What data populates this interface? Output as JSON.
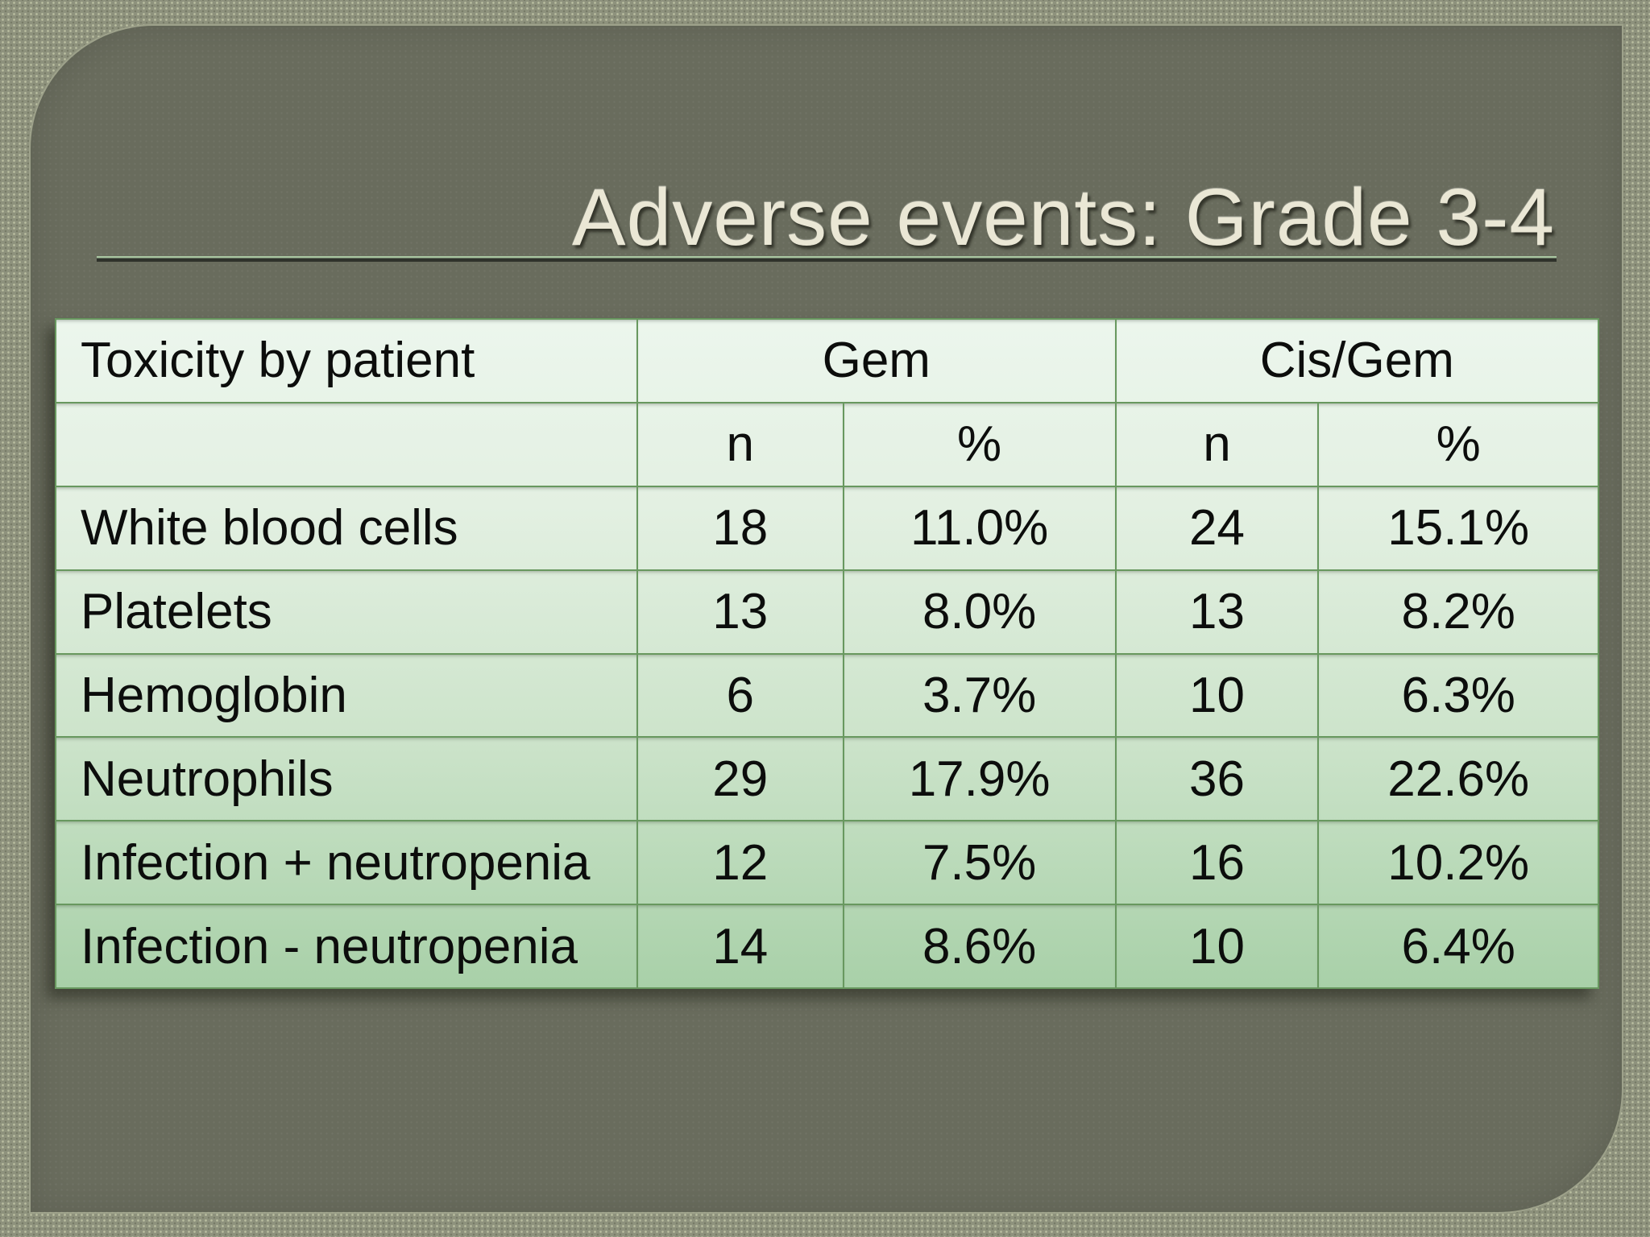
{
  "slide": {
    "title": "Adverse events: Grade 3-4"
  },
  "table": {
    "header": {
      "toxicity_label": "Toxicity by patient",
      "gem_label": "Gem",
      "cisgem_label": "Cis/Gem"
    },
    "sub_headers": [
      "",
      "n",
      "%",
      "n",
      "%"
    ],
    "rows": [
      {
        "cells": [
          "White blood cells",
          "18",
          "11.0%",
          "24",
          "15.1%"
        ]
      },
      {
        "cells": [
          "Platelets",
          "13",
          "8.0%",
          "13",
          "8.2%"
        ]
      },
      {
        "cells": [
          "Hemoglobin",
          "6",
          "3.7%",
          "10",
          "6.3%"
        ]
      },
      {
        "cells": [
          "Neutrophils",
          "29",
          "17.9%",
          "36",
          "22.6%"
        ]
      },
      {
        "cells": [
          "Infection + neutropenia",
          "12",
          "7.5%",
          "16",
          "10.2%"
        ]
      },
      {
        "cells": [
          "Infection - neutropenia",
          "14",
          "8.6%",
          "10",
          "6.4%"
        ]
      }
    ]
  },
  "colors": {
    "frame_background": "#8e927d",
    "panel_background": "#696c5d",
    "title_text": "#eae7d5",
    "rule_highlight": "#a8c5a0",
    "rule_dark": "#2f322b",
    "table_border": "#68985f",
    "table_gradient_top": "#ecf6ed",
    "table_gradient_bottom": "#a8d0a8",
    "table_text": "#0c0d0c"
  }
}
